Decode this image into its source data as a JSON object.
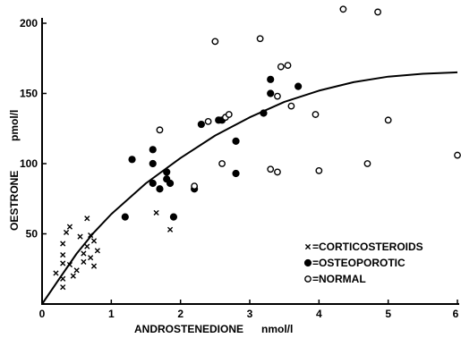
{
  "chart_data": {
    "type": "scatter",
    "xlabel": "ANDROSTENEDIONE",
    "xunit": "nmol/l",
    "ylabel": "OESTRONE",
    "yunit": "pmol/l",
    "xlim": [
      0,
      6
    ],
    "ylim": [
      0,
      200
    ],
    "xticks": [
      "0",
      "1",
      "2",
      "3",
      "4",
      "5",
      "6"
    ],
    "yticks": [
      "50",
      "100",
      "150",
      "200"
    ],
    "grid": false,
    "legend_position": "bottom-right",
    "series": [
      {
        "name": "CORTICOSTEROIDS",
        "legend_label": "=CORTICOSTEROIDS",
        "marker": "x",
        "points": [
          [
            0.2,
            22
          ],
          [
            0.3,
            12
          ],
          [
            0.3,
            18
          ],
          [
            0.3,
            29
          ],
          [
            0.3,
            35
          ],
          [
            0.3,
            43
          ],
          [
            0.35,
            51
          ],
          [
            0.4,
            55
          ],
          [
            0.4,
            28
          ],
          [
            0.45,
            20
          ],
          [
            0.5,
            24
          ],
          [
            0.55,
            48
          ],
          [
            0.6,
            36
          ],
          [
            0.6,
            30
          ],
          [
            0.65,
            41
          ],
          [
            0.65,
            61
          ],
          [
            0.7,
            33
          ],
          [
            0.7,
            49
          ],
          [
            0.75,
            27
          ],
          [
            0.75,
            45
          ],
          [
            0.8,
            38
          ],
          [
            1.65,
            65
          ],
          [
            1.85,
            53
          ]
        ]
      },
      {
        "name": "OSTEOPOROTIC",
        "legend_label": "=OSTEOPOROTIC",
        "marker": "filled-circle",
        "points": [
          [
            1.2,
            62
          ],
          [
            1.3,
            103
          ],
          [
            1.6,
            110
          ],
          [
            1.6,
            86
          ],
          [
            1.6,
            100
          ],
          [
            1.7,
            82
          ],
          [
            1.8,
            94
          ],
          [
            1.8,
            89
          ],
          [
            1.85,
            86
          ],
          [
            1.9,
            62
          ],
          [
            2.2,
            82
          ],
          [
            2.3,
            128
          ],
          [
            2.55,
            131
          ],
          [
            2.6,
            131
          ],
          [
            2.8,
            116
          ],
          [
            2.8,
            93
          ],
          [
            3.2,
            136
          ],
          [
            3.3,
            160
          ],
          [
            3.3,
            150
          ],
          [
            3.7,
            155
          ]
        ]
      },
      {
        "name": "NORMAL",
        "legend_label": "=NORMAL",
        "marker": "open-circle",
        "points": [
          [
            1.7,
            124
          ],
          [
            2.2,
            84
          ],
          [
            2.4,
            130
          ],
          [
            2.5,
            187
          ],
          [
            2.6,
            100
          ],
          [
            2.65,
            133
          ],
          [
            2.7,
            135
          ],
          [
            3.15,
            189
          ],
          [
            3.3,
            96
          ],
          [
            3.4,
            94
          ],
          [
            3.4,
            148
          ],
          [
            3.45,
            169
          ],
          [
            3.55,
            170
          ],
          [
            3.6,
            141
          ],
          [
            3.95,
            135
          ],
          [
            4.0,
            95
          ],
          [
            4.35,
            210
          ],
          [
            4.7,
            100
          ],
          [
            4.85,
            208
          ],
          [
            5.0,
            131
          ],
          [
            6.0,
            106
          ]
        ]
      }
    ],
    "fitted_curve": {
      "x": [
        0,
        0.25,
        0.5,
        0.75,
        1,
        1.5,
        2,
        2.5,
        3,
        3.5,
        4,
        4.5,
        5,
        5.5,
        6
      ],
      "y": [
        0,
        18,
        36,
        51,
        64,
        86,
        104,
        120,
        133,
        144,
        152,
        158,
        162,
        164,
        165
      ]
    }
  }
}
